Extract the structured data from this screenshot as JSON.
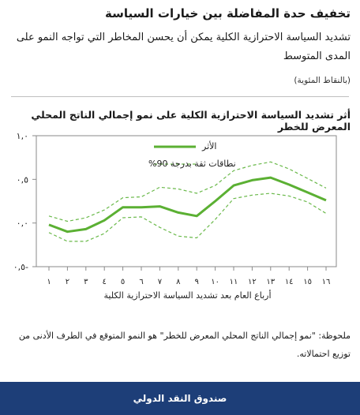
{
  "header": {
    "title": "تخفيف حدة المفاضلة بين خيارات السياسة",
    "subtitle": "تشديد السياسة الاحترازية الكلية يمكن أن يحسن المخاطر التي تواجه النمو على المدى المتوسط",
    "units": "(بالنقاط المئوية)"
  },
  "chart_data": {
    "type": "line",
    "title": "أثر تشديد السياسة الاحترازية الكلية على نمو إجمالي الناتج المحلي المعرض للخطر",
    "xlabel": "أرباع العام بعد تشديد السياسة الاحترازية الكلية",
    "ylabel": "",
    "x": [
      1,
      2,
      3,
      4,
      5,
      6,
      7,
      8,
      9,
      10,
      11,
      12,
      13,
      14,
      15,
      16
    ],
    "x_tick_labels": [
      "١",
      "٢",
      "٣",
      "٤",
      "٥",
      "٦",
      "٧",
      "٨",
      "٩",
      "١٠",
      "١١",
      "١٢",
      "١٣",
      "١٤",
      "١٥",
      "١٦"
    ],
    "ylim": [
      -0.5,
      1.0
    ],
    "y_ticks": [
      -0.5,
      0.0,
      0.5,
      1.0
    ],
    "y_tick_labels": [
      "٠,٥-",
      "٠,٠",
      "٠,٥",
      "١,٠"
    ],
    "grid": false,
    "legend_position": "top-center",
    "series": [
      {
        "name": "الأثر",
        "style": "solid",
        "color": "#5bb033",
        "values": [
          -0.02,
          -0.1,
          -0.07,
          0.03,
          0.18,
          0.18,
          0.19,
          0.12,
          0.08,
          0.25,
          0.43,
          0.49,
          0.52,
          0.44,
          0.35,
          0.26
        ]
      },
      {
        "name": "نطاقات ثقة بدرجة 90%",
        "style": "dashed",
        "color": "#6ab94a",
        "values": [
          0.08,
          0.02,
          0.06,
          0.15,
          0.29,
          0.3,
          0.41,
          0.39,
          0.34,
          0.43,
          0.6,
          0.66,
          0.7,
          0.62,
          0.51,
          0.4
        ]
      },
      {
        "name": "",
        "style": "dashed",
        "color": "#6ab94a",
        "values": [
          -0.11,
          -0.21,
          -0.21,
          -0.12,
          0.06,
          0.07,
          -0.05,
          -0.15,
          -0.17,
          0.04,
          0.28,
          0.32,
          0.34,
          0.31,
          0.24,
          0.11
        ]
      }
    ]
  },
  "note": "ملحوظة: \"نمو إجمالي الناتج المحلي المعرض للخطر\" هو النمو المتوقع في الطرف الأدنى من توزيع احتمالاته.",
  "footer": {
    "label": "صندوق النقد الدولي",
    "color": "#1d3e78"
  }
}
